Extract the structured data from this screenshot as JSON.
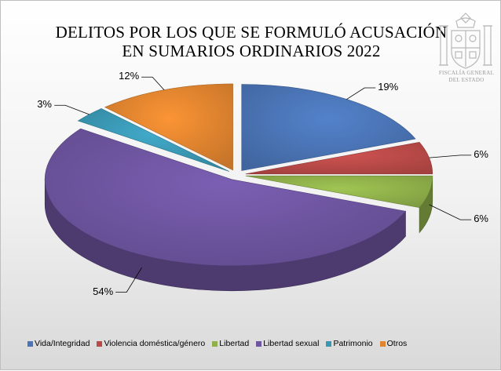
{
  "chart_data": {
    "type": "pie",
    "title_lines": [
      "DELITOS POR LOS QUE SE FORMULÓ ACUSACIÓN",
      "EN SUMARIOS ORDINARIOS 2022"
    ],
    "slices": [
      {
        "name": "Vida/Integridad",
        "value": 19,
        "label": "19%",
        "color": "#4a74b5"
      },
      {
        "name": "Violencia doméstica/género",
        "value": 6,
        "label": "6%",
        "color": "#b94a48"
      },
      {
        "name": "Libertad",
        "value": 6,
        "label": "6%",
        "color": "#8fb04a"
      },
      {
        "name": "Libertad sexual",
        "value": 54,
        "label": "54%",
        "color": "#6e55a0"
      },
      {
        "name": "Patrimonio",
        "value": 3,
        "label": "3%",
        "color": "#3a98b4"
      },
      {
        "name": "Otros",
        "value": 12,
        "label": "12%",
        "color": "#e0842f"
      }
    ],
    "legend_position": "bottom",
    "exploded": true,
    "three_d": true
  },
  "emblem": {
    "line1": "FISCALÍA GENERAL",
    "line2": "DEL ESTADO"
  }
}
